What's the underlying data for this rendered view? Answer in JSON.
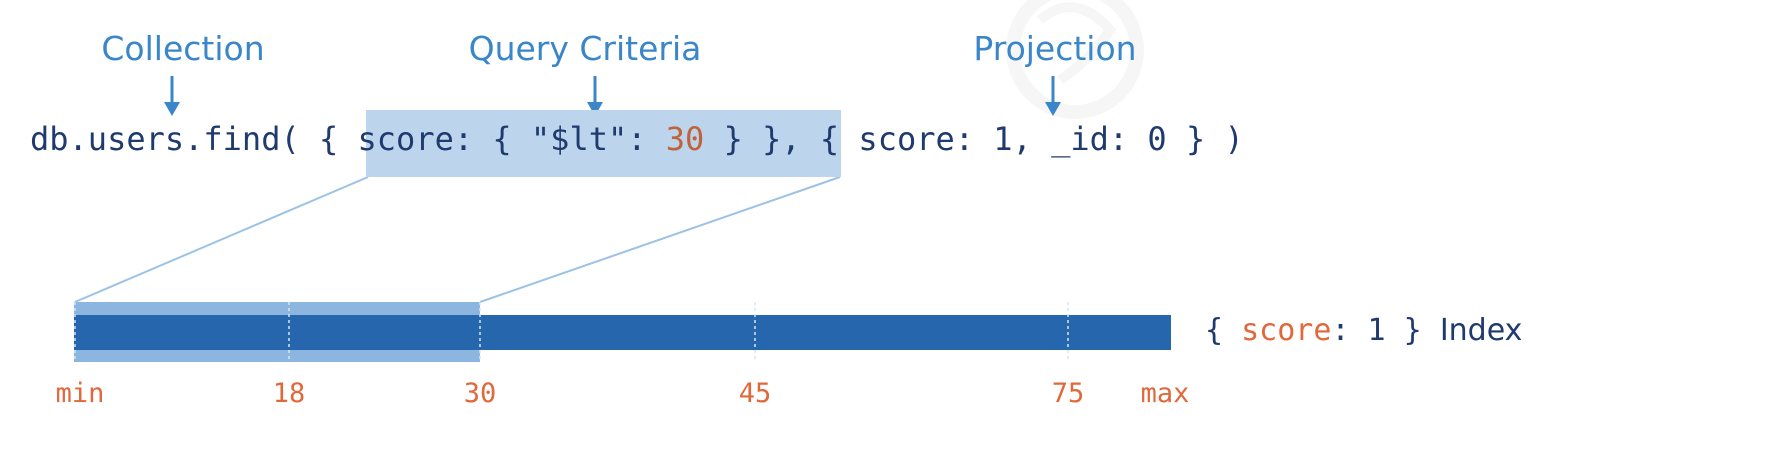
{
  "annotations": {
    "collection": "Collection",
    "query_criteria": "Query Criteria",
    "projection": "Projection"
  },
  "query": {
    "prefix": "db.users.find( { ",
    "criteria_key": "score: { \"$lt\": ",
    "criteria_value": "30",
    "criteria_close": " } }",
    "separator": ", ",
    "projection": "{ score: 1, _id: 0 } )"
  },
  "index": {
    "open": "{ ",
    "field": "score",
    "rest": ": 1 } ",
    "name": "Index",
    "ticks": [
      "min",
      "18",
      "30",
      "45",
      "75",
      "max"
    ]
  },
  "colors": {
    "label_blue": "#3a86c8",
    "code_navy": "#1f3a6e",
    "number_orange": "#c0633a",
    "tick_orange": "#e0683a",
    "highlight": "#bcd5ec",
    "connector": "#9cc2e6",
    "index_bar": "#2566ad",
    "scanned_range": "#8cb6df"
  }
}
